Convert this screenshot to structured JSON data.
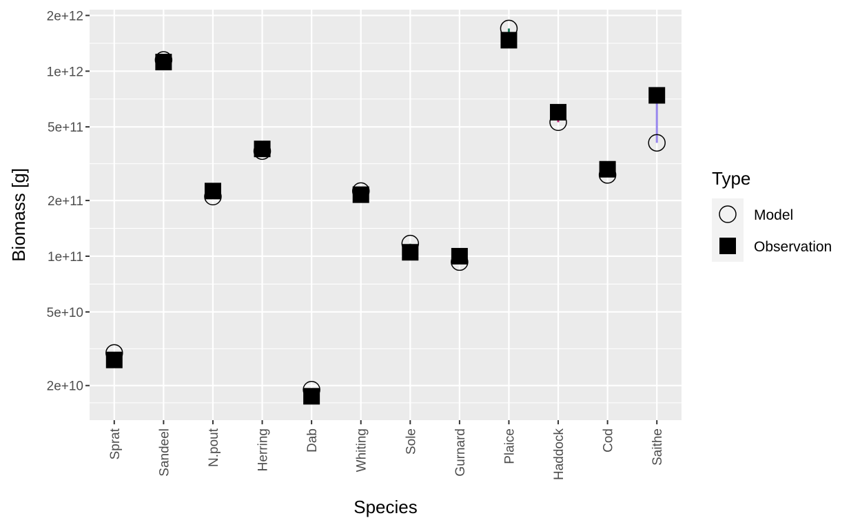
{
  "chart_data": {
    "type": "scatter",
    "title": "",
    "xlabel": "Species",
    "ylabel": "Biomass [g]",
    "y_scale": "log10",
    "ylim": [
      13000000000,
      2150000000000
    ],
    "y_ticks": [
      {
        "value": 20000000000,
        "label": "2e+10"
      },
      {
        "value": 50000000000,
        "label": "5e+10"
      },
      {
        "value": 100000000000,
        "label": "1e+11"
      },
      {
        "value": 200000000000,
        "label": "2e+11"
      },
      {
        "value": 500000000000,
        "label": "5e+11"
      },
      {
        "value": 1000000000000,
        "label": "1e+12"
      },
      {
        "value": 2000000000000,
        "label": "2e+12"
      }
    ],
    "grid": true,
    "legend_placement": "right",
    "legend_title": "Type",
    "categories": [
      "Sprat",
      "Sandeel",
      "N.pout",
      "Herring",
      "Dab",
      "Whiting",
      "Sole",
      "Gurnard",
      "Plaice",
      "Haddock",
      "Cod",
      "Saithe"
    ],
    "species_colors": [
      "#8a6d1f",
      "#3333cc",
      "#b5b53a",
      "#a04ad0",
      "#1b4d1b",
      "#3a1a8a",
      "#7aa88a",
      "#cc1a4a",
      "#1a7a5a",
      "#c2277a",
      "#1a3a1a",
      "#9988ee"
    ],
    "series": [
      {
        "name": "Model",
        "marker": "open-circle",
        "values": [
          30000000000,
          1150000000000,
          210000000000,
          370000000000,
          19000000000,
          225000000000,
          117000000000,
          93000000000,
          1700000000000,
          530000000000,
          275000000000,
          410000000000
        ]
      },
      {
        "name": "Observation",
        "marker": "filled-square",
        "values": [
          27500000000,
          1120000000000,
          225000000000,
          380000000000,
          17500000000,
          215000000000,
          105000000000,
          100000000000,
          1470000000000,
          600000000000,
          295000000000,
          740000000000
        ]
      }
    ]
  }
}
